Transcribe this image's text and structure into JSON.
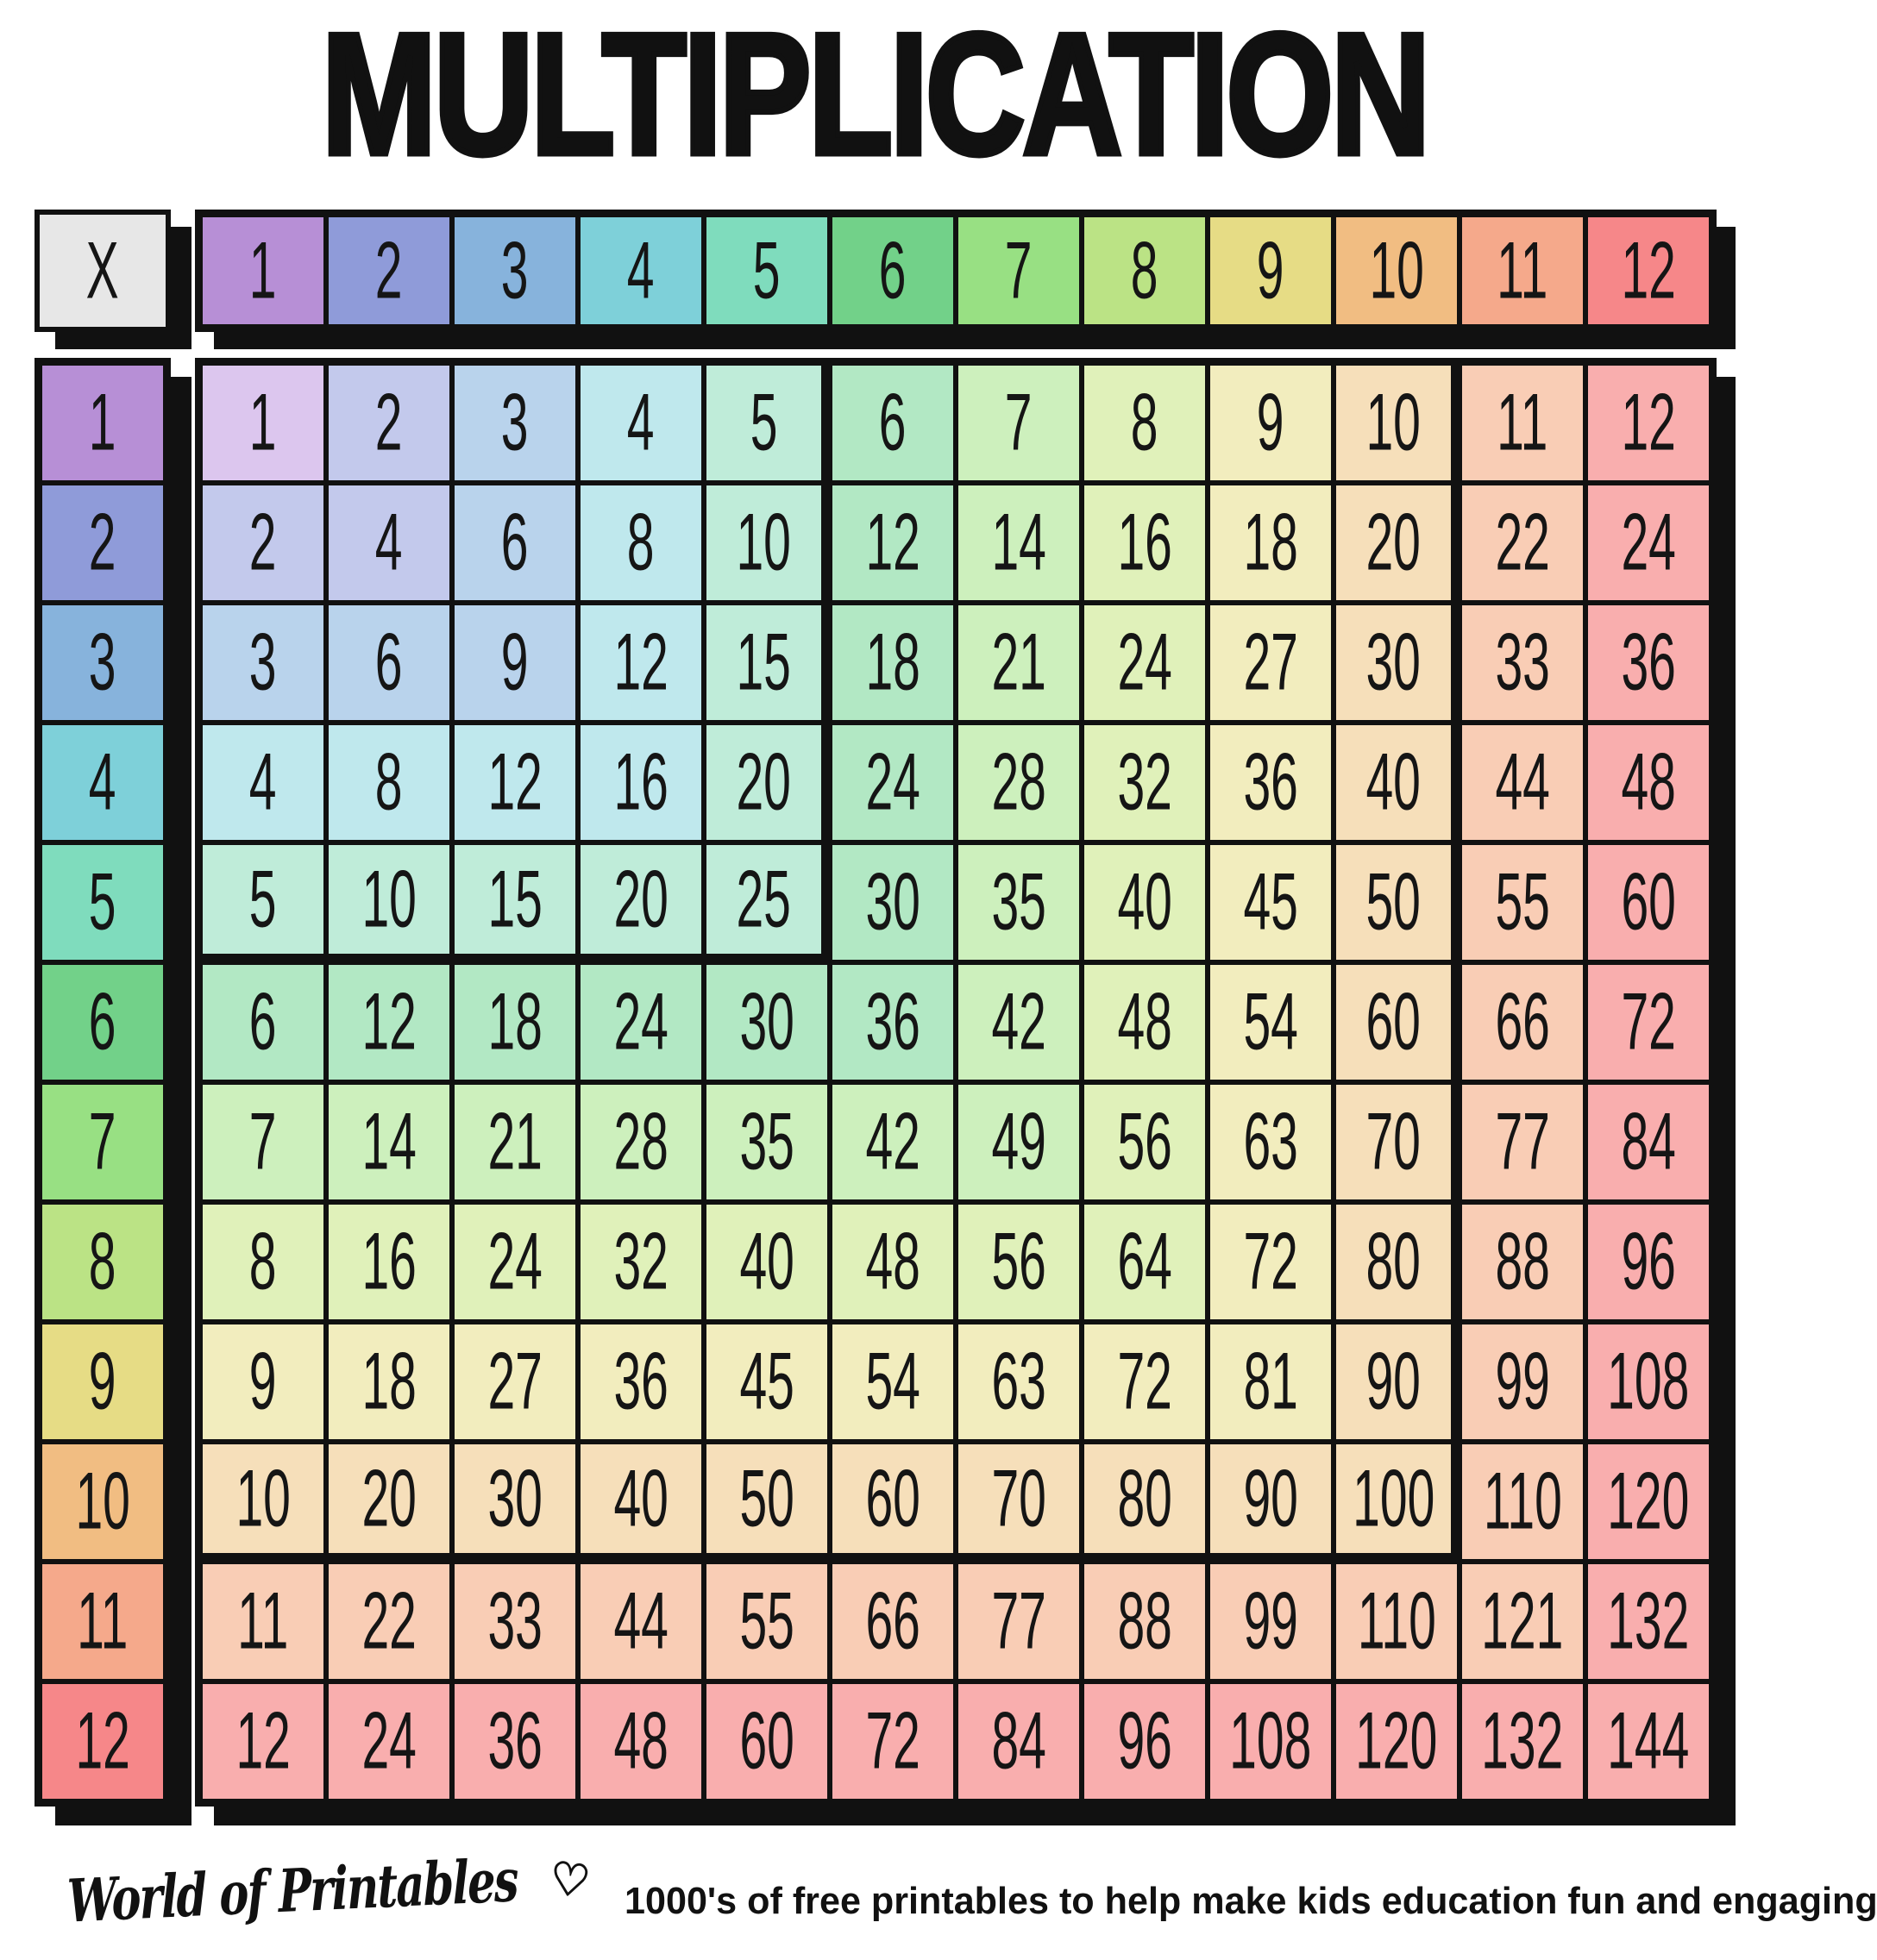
{
  "title": "MULTIPLICATION",
  "table": {
    "corner_label": "X",
    "col_headers": [
      "1",
      "2",
      "3",
      "4",
      "5",
      "6",
      "7",
      "8",
      "9",
      "10",
      "11",
      "12"
    ],
    "row_headers": [
      "1",
      "2",
      "3",
      "4",
      "5",
      "6",
      "7",
      "8",
      "9",
      "10",
      "11",
      "12"
    ],
    "rows": [
      [
        1,
        2,
        3,
        4,
        5,
        6,
        7,
        8,
        9,
        10,
        11,
        12
      ],
      [
        2,
        4,
        6,
        8,
        10,
        12,
        14,
        16,
        18,
        20,
        22,
        24
      ],
      [
        3,
        6,
        9,
        12,
        15,
        18,
        21,
        24,
        27,
        30,
        33,
        36
      ],
      [
        4,
        8,
        12,
        16,
        20,
        24,
        28,
        32,
        36,
        40,
        44,
        48
      ],
      [
        5,
        10,
        15,
        20,
        25,
        30,
        35,
        40,
        45,
        50,
        55,
        60
      ],
      [
        6,
        12,
        18,
        24,
        30,
        36,
        42,
        48,
        54,
        60,
        66,
        72
      ],
      [
        7,
        14,
        21,
        28,
        35,
        42,
        49,
        56,
        63,
        70,
        77,
        84
      ],
      [
        8,
        16,
        24,
        32,
        40,
        48,
        56,
        64,
        72,
        80,
        88,
        96
      ],
      [
        9,
        18,
        27,
        36,
        45,
        54,
        63,
        72,
        81,
        90,
        99,
        108
      ],
      [
        10,
        20,
        30,
        40,
        50,
        60,
        70,
        80,
        90,
        100,
        110,
        120
      ],
      [
        11,
        22,
        33,
        44,
        55,
        66,
        77,
        88,
        99,
        110,
        121,
        132
      ],
      [
        12,
        24,
        36,
        48,
        60,
        72,
        84,
        96,
        108,
        120,
        132,
        144
      ]
    ]
  },
  "colors": {
    "header_scale": [
      "#b78fd6",
      "#8f9bd9",
      "#87b3dc",
      "#7ed0d9",
      "#7fdcbd",
      "#72d189",
      "#98e083",
      "#bbe385",
      "#e6dc85",
      "#f1bd82",
      "#f5a98b",
      "#f68789"
    ],
    "cell_scale": [
      "#dcc6ee",
      "#c3c9ec",
      "#b9d3ec",
      "#bfe8ed",
      "#bfecd9",
      "#b2e8c4",
      "#cdf0bd",
      "#e0f1ba",
      "#f2edbe",
      "#f6dfba",
      "#f9cdb5",
      "#f9aeae"
    ],
    "corner_bg": "#e7e7e7",
    "line": "#111111"
  },
  "footer": {
    "brand": "World of Printables",
    "heart_icon": "♡",
    "tagline": "1000's of free printables to help make kids education fun and engaging"
  }
}
